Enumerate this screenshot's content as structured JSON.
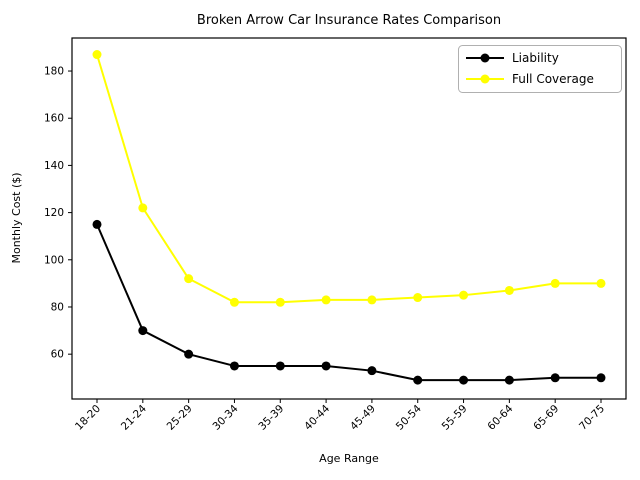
{
  "header": {
    "title": "Broken Arrow Car Insurance Rates Comparison"
  },
  "chart_data": {
    "type": "line",
    "title": "Broken Arrow Car Insurance Rates Comparison",
    "xlabel": "Age Range",
    "ylabel": "Monthly Cost ($)",
    "categories": [
      "18-20",
      "21-24",
      "25-29",
      "30-34",
      "35-39",
      "40-44",
      "45-49",
      "50-54",
      "55-59",
      "60-64",
      "65-69",
      "70-75"
    ],
    "series": [
      {
        "name": "Liability",
        "color": "#000000",
        "marker": "o",
        "values": [
          115,
          70,
          60,
          55,
          55,
          55,
          53,
          49,
          49,
          49,
          50,
          50
        ]
      },
      {
        "name": "Full Coverage",
        "color": "#ffff00",
        "marker": "o",
        "values": [
          187,
          122,
          92,
          82,
          82,
          83,
          83,
          84,
          85,
          87,
          90,
          90
        ]
      }
    ],
    "yticks": [
      60,
      80,
      100,
      120,
      140,
      160,
      180
    ],
    "ylim": [
      41,
      194
    ],
    "xtick_rotation": 45,
    "grid": false,
    "legend_position": "upper right",
    "background_color": "#ffffff",
    "spine_color": "#000000",
    "legend_border_color": "#b0b0b0"
  }
}
